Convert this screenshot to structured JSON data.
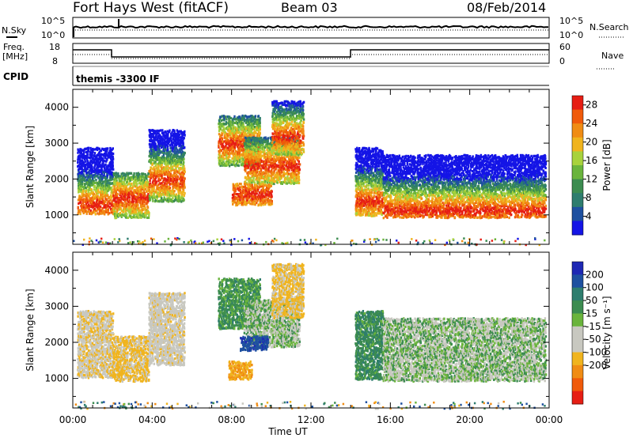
{
  "header": {
    "station": "Fort Hays West (fitACF)",
    "beam": "Beam 03",
    "date": "08/Feb/2014"
  },
  "top_panels": {
    "nsky_label": "N.Sky",
    "nsky_ticks": [
      "10^5",
      "10^0"
    ],
    "nsearch_label": "N.Search",
    "nsearch_ticks": [
      "10^5",
      "10^0"
    ],
    "freq_label_1": "Freq.",
    "freq_label_2": "[MHz]",
    "freq_ticks": [
      "18",
      "8"
    ],
    "nave_label": "Nave",
    "nave_ticks": [
      "60",
      "0"
    ],
    "cpid_label": "CPID",
    "cpid_value": "themis -3300 IF"
  },
  "colors": {
    "power_scale": [
      "#1414e6",
      "#1e50a0",
      "#2e7d6e",
      "#3c8c50",
      "#6ab43c",
      "#a8d23c",
      "#f0b41e",
      "#f08c14",
      "#f05a0a",
      "#e61e14"
    ],
    "velocity_scale": [
      "#1e28b4",
      "#1e50a0",
      "#2e7d6e",
      "#3c8c50",
      "#6ab43c",
      "#c8c8c0",
      "#c8c8c0",
      "#f0b41e",
      "#f08c14",
      "#f05a0a",
      "#e61e14"
    ]
  },
  "chart_data": [
    {
      "type": "heatmap",
      "title": "",
      "xlabel": "Time UT",
      "ylabel": "Slant Range [km]",
      "xlim": [
        0,
        24
      ],
      "ylim": [
        180,
        4500
      ],
      "x_ticks": [
        "00:00",
        "04:00",
        "08:00",
        "12:00",
        "16:00",
        "20:00",
        "00:00"
      ],
      "y_ticks": [
        1000,
        2000,
        3000,
        4000
      ],
      "colorbar": {
        "label": "Power [dB]",
        "ticks": [
          4,
          8,
          12,
          16,
          20,
          24,
          28
        ],
        "range": [
          0,
          30
        ]
      },
      "regions": [
        {
          "t0": 0.2,
          "t1": 2.0,
          "r0": 1050,
          "r1": 2900,
          "peak": 1300
        },
        {
          "t0": 2.0,
          "t1": 3.8,
          "r0": 950,
          "r1": 2200,
          "peak": 1500
        },
        {
          "t0": 3.8,
          "t1": 5.6,
          "r0": 1400,
          "r1": 3400,
          "peak": 2000
        },
        {
          "t0": 7.3,
          "t1": 9.4,
          "r0": 2400,
          "r1": 3800,
          "peak": 3000
        },
        {
          "t0": 8.6,
          "t1": 11.4,
          "r0": 1900,
          "r1": 3200,
          "peak": 2400
        },
        {
          "t0": 10.0,
          "t1": 11.6,
          "r0": 2700,
          "r1": 4200,
          "peak": 3200
        },
        {
          "t0": 8.0,
          "t1": 10.0,
          "r0": 1300,
          "r1": 1900,
          "peak": 1600
        },
        {
          "t0": 14.2,
          "t1": 15.6,
          "r0": 1000,
          "r1": 2900,
          "peak": 1400
        },
        {
          "t0": 15.6,
          "t1": 23.8,
          "r0": 950,
          "r1": 2700,
          "peak": 1150
        }
      ]
    },
    {
      "type": "heatmap",
      "title": "",
      "xlabel": "Time UT",
      "ylabel": "Slant Range [km]",
      "xlim": [
        0,
        24
      ],
      "ylim": [
        180,
        4500
      ],
      "x_ticks": [
        "00:00",
        "04:00",
        "08:00",
        "12:00",
        "16:00",
        "20:00",
        "00:00"
      ],
      "y_ticks": [
        1000,
        2000,
        3000,
        4000
      ],
      "colorbar": {
        "label": "Velocity [m s⁻¹]",
        "ticks": [
          200,
          100,
          50,
          15,
          -15,
          -50,
          -100,
          -200
        ],
        "range": [
          -250,
          250
        ]
      },
      "regions": [
        {
          "t0": 0.2,
          "t1": 2.0,
          "r0": 1050,
          "r1": 2900,
          "v": -40
        },
        {
          "t0": 2.0,
          "t1": 3.8,
          "r0": 950,
          "r1": 2200,
          "v": -60
        },
        {
          "t0": 3.8,
          "t1": 5.6,
          "r0": 1400,
          "r1": 3400,
          "v": -30
        },
        {
          "t0": 7.3,
          "t1": 9.4,
          "r0": 2400,
          "r1": 3800,
          "v": 30
        },
        {
          "t0": 8.6,
          "t1": 11.4,
          "r0": 1900,
          "r1": 3200,
          "v": 0
        },
        {
          "t0": 10.0,
          "t1": 11.6,
          "r0": 2700,
          "r1": 4200,
          "v": -60
        },
        {
          "t0": 8.4,
          "t1": 9.8,
          "r0": 1800,
          "r1": 2200,
          "v": 180
        },
        {
          "t0": 7.8,
          "t1": 9.0,
          "r0": 1000,
          "r1": 1500,
          "v": -90
        },
        {
          "t0": 14.2,
          "t1": 15.6,
          "r0": 1000,
          "r1": 2900,
          "v": 40
        },
        {
          "t0": 15.6,
          "t1": 23.8,
          "r0": 950,
          "r1": 2700,
          "v": 0
        }
      ]
    }
  ]
}
